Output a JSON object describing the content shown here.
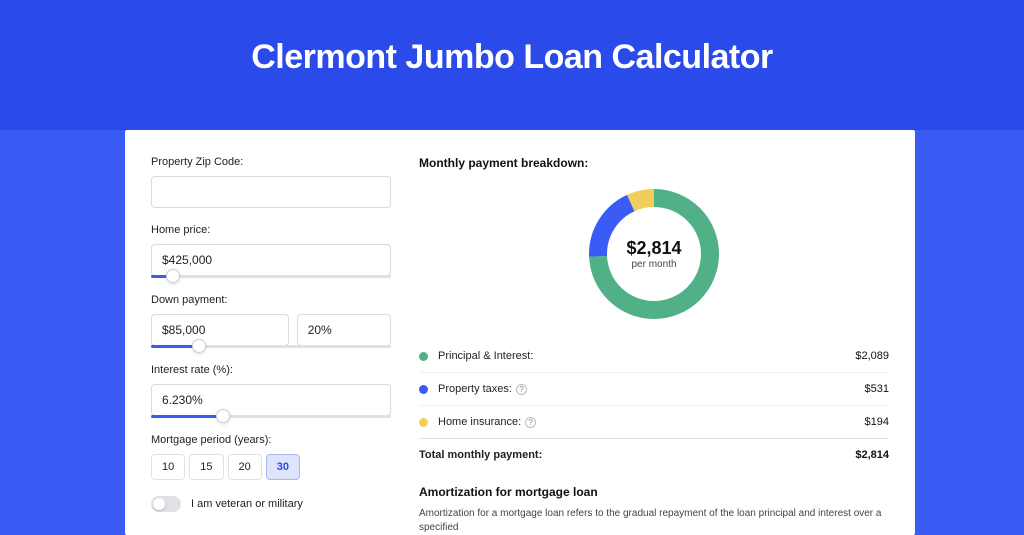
{
  "page": {
    "title": "Clermont Jumbo Loan Calculator",
    "background_color": "#3a5cf4",
    "header_band_color": "#2a4aea",
    "card_background": "#ffffff"
  },
  "form": {
    "zip": {
      "label": "Property Zip Code:",
      "value": ""
    },
    "home_price": {
      "label": "Home price:",
      "value": "$425,000",
      "slider_percent": 9
    },
    "down_payment": {
      "label": "Down payment:",
      "value": "$85,000",
      "percent": "20%",
      "slider_percent": 20
    },
    "interest_rate": {
      "label": "Interest rate (%):",
      "value": "6.230%",
      "slider_percent": 30
    },
    "mortgage_period": {
      "label": "Mortgage period (years):",
      "options": [
        "10",
        "15",
        "20",
        "30"
      ],
      "selected": "30"
    },
    "veteran": {
      "label": "I am veteran or military",
      "checked": false
    }
  },
  "breakdown": {
    "title": "Monthly payment breakdown:",
    "center_amount": "$2,814",
    "center_sub": "per month",
    "donut": {
      "radius": 56,
      "stroke_width": 18,
      "slices": [
        {
          "label": "Principal & Interest:",
          "value": "$2,089",
          "numeric": 2089,
          "color": "#50b086",
          "has_tooltip": false
        },
        {
          "label": "Property taxes:",
          "value": "$531",
          "numeric": 531,
          "color": "#3a5cf4",
          "has_tooltip": true
        },
        {
          "label": "Home insurance:",
          "value": "$194",
          "numeric": 194,
          "color": "#f2cd5c",
          "has_tooltip": true
        }
      ]
    },
    "total": {
      "label": "Total monthly payment:",
      "value": "$2,814"
    }
  },
  "amortization": {
    "title": "Amortization for mortgage loan",
    "text": "Amortization for a mortgage loan refers to the gradual repayment of the loan principal and interest over a specified"
  }
}
